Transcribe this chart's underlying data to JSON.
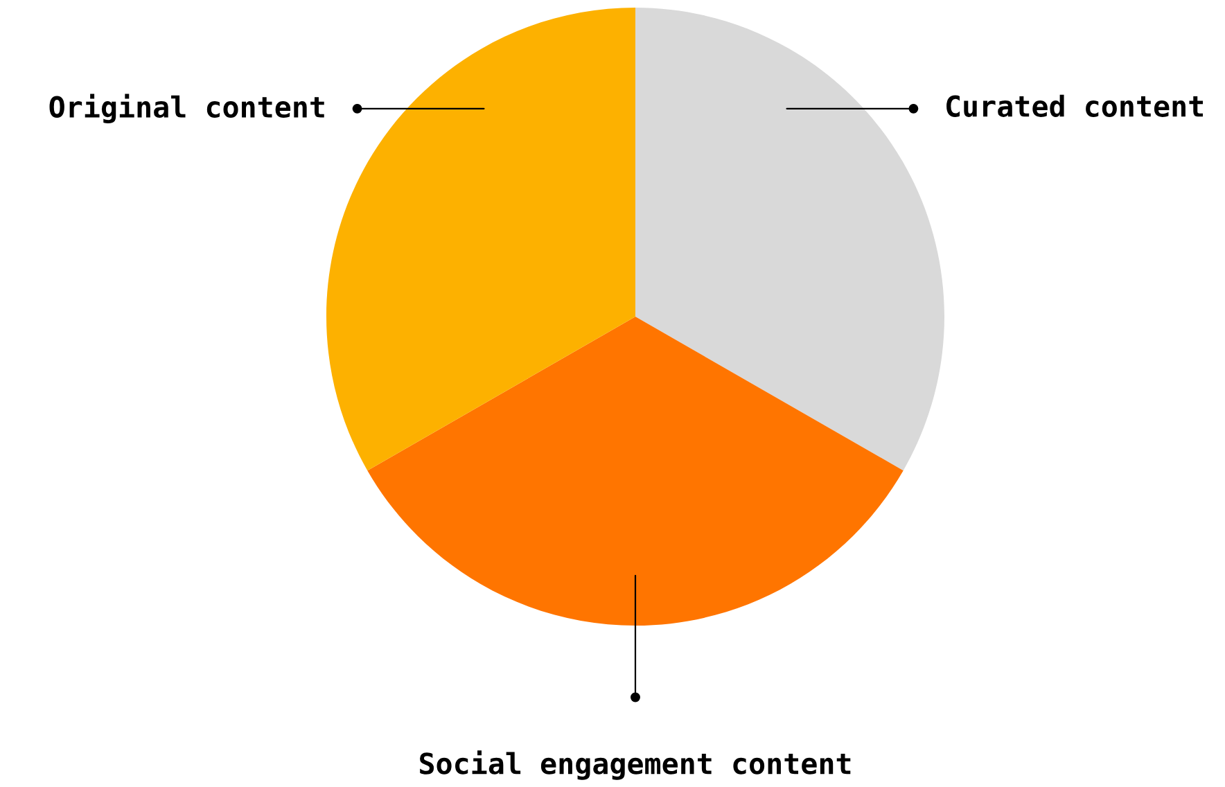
{
  "chart_data": {
    "type": "pie",
    "categories": [
      "Curated content",
      "Social engagement content",
      "Original content"
    ],
    "values": [
      33.3,
      33.4,
      33.3
    ],
    "colors": [
      "#d9d9d9",
      "#ff7500",
      "#fdb100"
    ],
    "legend": false
  }
}
